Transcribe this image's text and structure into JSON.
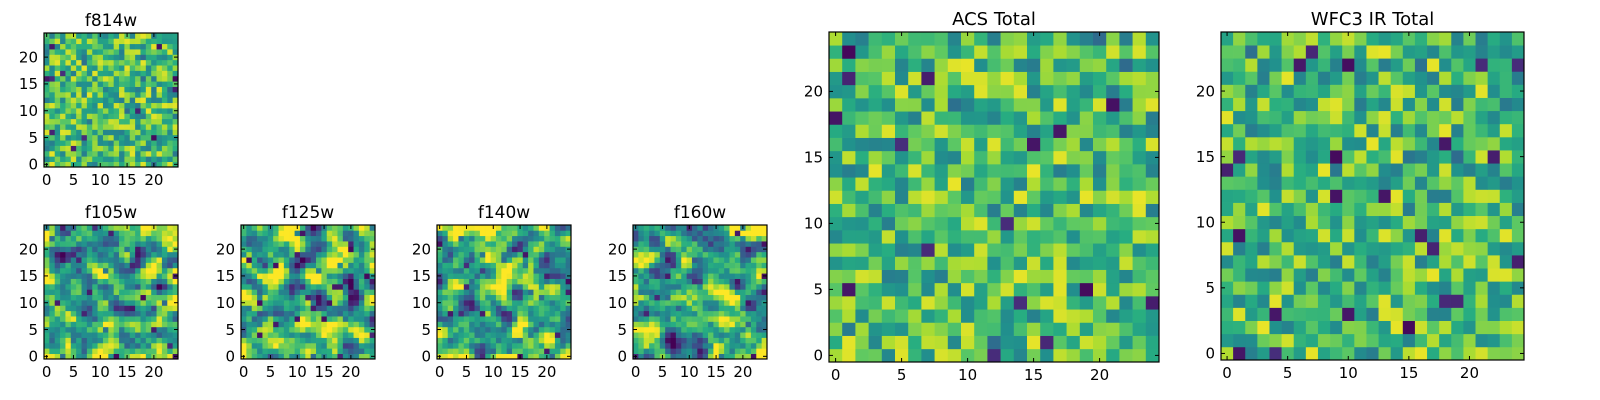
{
  "chart_data": [
    {
      "type": "heatmap",
      "title": "f814w",
      "grid_size": [
        25,
        25
      ],
      "colormap": "viridis",
      "xlim": [
        0,
        24
      ],
      "ylim": [
        0,
        24
      ],
      "xticks": [
        0,
        5,
        10,
        15,
        20
      ],
      "yticks": [
        0,
        5,
        10,
        15,
        20
      ],
      "value_range": [
        0,
        1
      ],
      "pattern": "high-frequency pixel noise, mostly green-yellow with scattered dark-blue pixels"
    },
    {
      "type": "heatmap",
      "title": "f105w",
      "grid_size": [
        25,
        25
      ],
      "colormap": "viridis",
      "xlim": [
        0,
        24
      ],
      "ylim": [
        0,
        24
      ],
      "xticks": [
        0,
        5,
        10,
        15,
        20
      ],
      "yticks": [
        0,
        5,
        10,
        15,
        20
      ],
      "value_range": [
        0,
        1
      ],
      "pattern": "smoothed noise, mostly green-yellow with a few dark blobs"
    },
    {
      "type": "heatmap",
      "title": "f125w",
      "grid_size": [
        25,
        25
      ],
      "colormap": "viridis",
      "xlim": [
        0,
        24
      ],
      "ylim": [
        0,
        24
      ],
      "xticks": [
        0,
        5,
        10,
        15,
        20
      ],
      "yticks": [
        0,
        5,
        10,
        15,
        20
      ],
      "value_range": [
        0,
        1
      ],
      "pattern": "smoothed noise, mixed teal-green-yellow"
    },
    {
      "type": "heatmap",
      "title": "f140w",
      "grid_size": [
        25,
        25
      ],
      "colormap": "viridis",
      "xlim": [
        0,
        24
      ],
      "ylim": [
        0,
        24
      ],
      "xticks": [
        0,
        5,
        10,
        15,
        20
      ],
      "yticks": [
        0,
        5,
        10,
        15,
        20
      ],
      "value_range": [
        0,
        1
      ],
      "pattern": "smoothed noise, green-yellow with scattered dark blobs"
    },
    {
      "type": "heatmap",
      "title": "f160w",
      "grid_size": [
        25,
        25
      ],
      "colormap": "viridis",
      "xlim": [
        0,
        24
      ],
      "ylim": [
        0,
        24
      ],
      "xticks": [
        0,
        5,
        10,
        15,
        20
      ],
      "yticks": [
        0,
        5,
        10,
        15,
        20
      ],
      "value_range": [
        0,
        1
      ],
      "pattern": "smoothed noise, green-yellow with scattered dark blobs"
    },
    {
      "type": "heatmap",
      "title": "ACS Total",
      "grid_size": [
        25,
        25
      ],
      "colormap": "viridis",
      "xlim": [
        0,
        24
      ],
      "ylim": [
        0,
        24
      ],
      "xticks": [
        0,
        5,
        10,
        15,
        20
      ],
      "yticks": [
        0,
        5,
        10,
        15,
        20
      ],
      "value_range": [
        0,
        1
      ],
      "pattern": "pixel noise, mostly green with some yellow and a few dark-blue pixels"
    },
    {
      "type": "heatmap",
      "title": "WFC3 IR Total",
      "grid_size": [
        25,
        25
      ],
      "colormap": "viridis",
      "xlim": [
        0,
        24
      ],
      "ylim": [
        0,
        24
      ],
      "xticks": [
        0,
        5,
        10,
        15,
        20
      ],
      "yticks": [
        0,
        5,
        10,
        15,
        20
      ],
      "value_range": [
        0,
        1
      ],
      "pattern": "pixel noise, mostly green with some yellow and a few dark-blue pixels"
    }
  ]
}
